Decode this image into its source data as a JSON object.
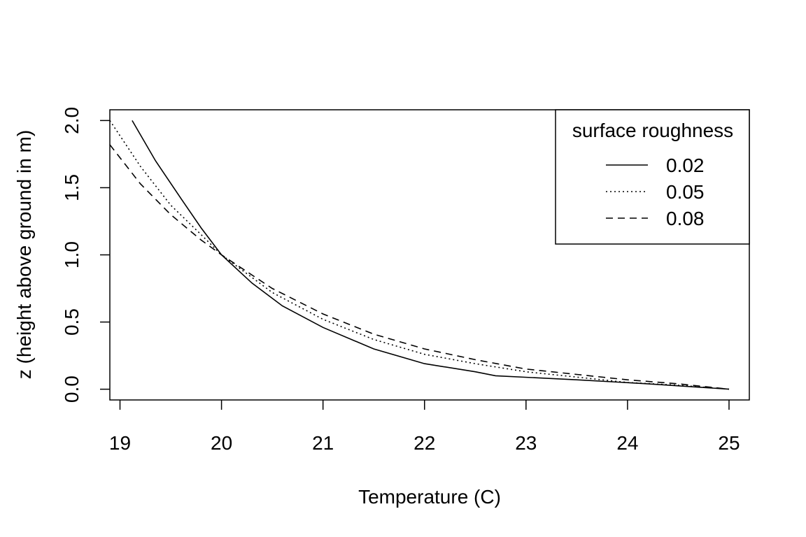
{
  "chart_data": {
    "type": "line",
    "title": "",
    "xlabel": "Temperature (C)",
    "ylabel": "z (height above ground in m)",
    "xlim": [
      18.9,
      25.2
    ],
    "ylim": [
      -0.08,
      2.08
    ],
    "x_ticks": [
      19,
      20,
      21,
      22,
      23,
      24,
      25
    ],
    "x_tick_labels": [
      "19",
      "20",
      "21",
      "22",
      "23",
      "24",
      "25"
    ],
    "y_ticks": [
      0.0,
      0.5,
      1.0,
      1.5,
      2.0
    ],
    "y_tick_labels": [
      "0.0",
      "0.5",
      "1.0",
      "1.5",
      "2.0"
    ],
    "legend": {
      "title": "surface roughness",
      "position": "top-right"
    },
    "series": [
      {
        "name": "0.02",
        "dash": "solid",
        "points": [
          [
            19.12,
            2.0
          ],
          [
            19.35,
            1.7
          ],
          [
            19.6,
            1.42
          ],
          [
            19.8,
            1.2
          ],
          [
            20.0,
            1.0
          ],
          [
            20.3,
            0.79
          ],
          [
            20.6,
            0.62
          ],
          [
            21.0,
            0.46
          ],
          [
            21.5,
            0.3
          ],
          [
            22.0,
            0.19
          ],
          [
            22.5,
            0.13
          ],
          [
            22.7,
            0.1
          ],
          [
            23.5,
            0.07
          ],
          [
            24.2,
            0.04
          ],
          [
            25.0,
            0.0
          ]
        ]
      },
      {
        "name": "0.05",
        "dash": "dotted",
        "points": [
          [
            18.9,
            2.0
          ],
          [
            19.2,
            1.66
          ],
          [
            19.5,
            1.37
          ],
          [
            19.8,
            1.15
          ],
          [
            20.0,
            1.0
          ],
          [
            20.5,
            0.72
          ],
          [
            21.0,
            0.52
          ],
          [
            21.5,
            0.37
          ],
          [
            22.0,
            0.26
          ],
          [
            22.5,
            0.19
          ],
          [
            23.0,
            0.13
          ],
          [
            23.5,
            0.09
          ],
          [
            24.0,
            0.05
          ],
          [
            24.5,
            0.03
          ],
          [
            25.0,
            0.0
          ]
        ]
      },
      {
        "name": "0.08",
        "dash": "dashed",
        "points": [
          [
            18.9,
            1.82
          ],
          [
            19.2,
            1.53
          ],
          [
            19.5,
            1.3
          ],
          [
            19.8,
            1.11
          ],
          [
            20.0,
            1.0
          ],
          [
            20.5,
            0.75
          ],
          [
            21.0,
            0.56
          ],
          [
            21.5,
            0.41
          ],
          [
            22.0,
            0.3
          ],
          [
            22.5,
            0.22
          ],
          [
            23.0,
            0.15
          ],
          [
            23.5,
            0.11
          ],
          [
            24.0,
            0.07
          ],
          [
            24.5,
            0.04
          ],
          [
            25.0,
            0.0
          ]
        ]
      }
    ]
  }
}
